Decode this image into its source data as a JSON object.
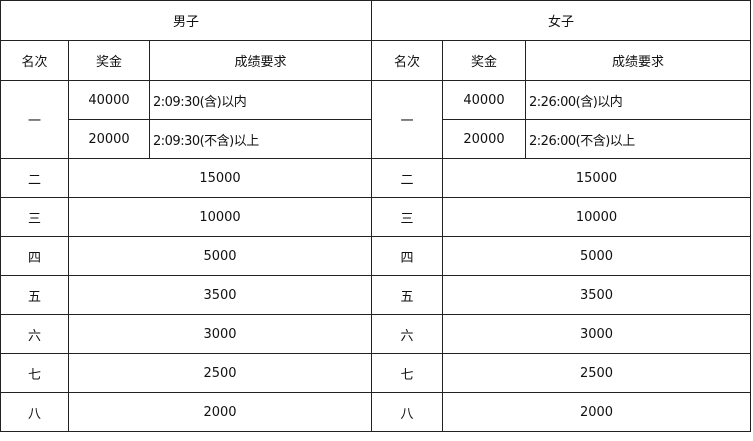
{
  "groups": {
    "men": "男子",
    "women": "女子"
  },
  "headers": {
    "rank": "名次",
    "prize": "奖金",
    "requirement": "成绩要求"
  },
  "first": {
    "rank": "一",
    "men": [
      {
        "prize": "40000",
        "requirement": "2:09:30(含)以内"
      },
      {
        "prize": "20000",
        "requirement": "2:09:30(不含)以上"
      }
    ],
    "women": [
      {
        "prize": "40000",
        "requirement": "2:26:00(含)以内"
      },
      {
        "prize": "20000",
        "requirement": "2:26:00(不含)以上"
      }
    ]
  },
  "rows": [
    {
      "rank": "二",
      "men": "15000",
      "women": "15000"
    },
    {
      "rank": "三",
      "men": "10000",
      "women": "10000"
    },
    {
      "rank": "四",
      "men": "5000",
      "women": "5000"
    },
    {
      "rank": "五",
      "men": "3500",
      "women": "3500"
    },
    {
      "rank": "六",
      "men": "3000",
      "women": "3000"
    },
    {
      "rank": "七",
      "men": "2500",
      "women": "2500"
    },
    {
      "rank": "八",
      "men": "2000",
      "women": "2000"
    }
  ]
}
